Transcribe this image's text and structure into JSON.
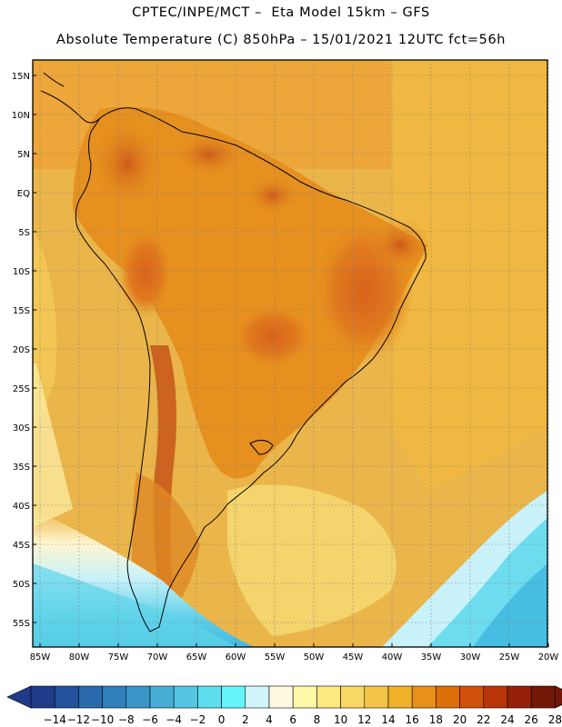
{
  "header": {
    "line1": "CPTEC/INPE/MCT –  Eta Model 15km – GFS",
    "line2": "Absolute Temperature (C) 850hPa – 15/01/2021 12UTC fct=56h"
  },
  "map": {
    "lat_labels": [
      "15N",
      "10N",
      "5N",
      "EQ",
      "5S",
      "10S",
      "15S",
      "20S",
      "25S",
      "30S",
      "35S",
      "40S",
      "45S",
      "50S",
      "55S"
    ],
    "lon_labels": [
      "85W",
      "80W",
      "75W",
      "70W",
      "65W",
      "60W",
      "55W",
      "50W",
      "45W",
      "40W",
      "35W",
      "30W",
      "25W",
      "20W"
    ]
  },
  "colorbar": {
    "labels": [
      "-14",
      "-12",
      "-10",
      "-8",
      "-6",
      "-4",
      "-2",
      "0",
      "2",
      "4",
      "6",
      "8",
      "10",
      "12",
      "14",
      "16",
      "18",
      "20",
      "22",
      "24",
      "26",
      "28"
    ],
    "colors": [
      "#1f3b8a",
      "#24519c",
      "#2a69ac",
      "#3080bd",
      "#3a96c9",
      "#48aed6",
      "#55c6e2",
      "#5ddff0",
      "#66f4fb",
      "#d2f4fb",
      "#fff8e1",
      "#fff7a8",
      "#fce97f",
      "#f8d865",
      "#f3c64a",
      "#f0b12b",
      "#e89018",
      "#df6f0b",
      "#d1500a",
      "#b93509",
      "#962008",
      "#731707"
    ]
  }
}
